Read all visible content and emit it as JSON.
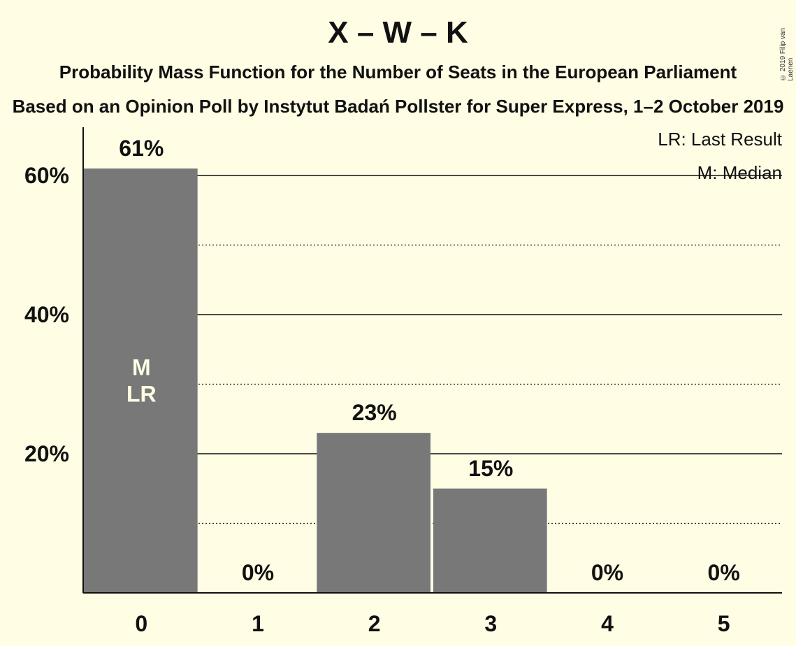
{
  "title": "X – W – K",
  "subtitle1": "Probability Mass Function for the Number of Seats in the European Parliament",
  "subtitle2": "Based on an Opinion Poll by Instytut Badań Pollster for Super Express, 1–2 October 2019",
  "copyright": "© 2019 Filip van Laenen",
  "legend": {
    "last_result": "LR: Last Result",
    "median": "M: Median"
  },
  "colors": {
    "background": "#fffde4",
    "bar": "#787878",
    "text": "#111111"
  },
  "chart_data": {
    "type": "bar",
    "title": "X – W – K",
    "xlabel": "",
    "ylabel": "",
    "categories": [
      "0",
      "1",
      "2",
      "3",
      "4",
      "5"
    ],
    "values": [
      61,
      0,
      23,
      15,
      0,
      0
    ],
    "value_labels": [
      "61%",
      "0%",
      "23%",
      "15%",
      "0%",
      "0%"
    ],
    "ylim": [
      0,
      66
    ],
    "y_ticks": [
      20,
      40,
      60
    ],
    "y_tick_labels": [
      "20%",
      "40%",
      "60%"
    ],
    "minor_gridlines": [
      10,
      30,
      50
    ],
    "bar_markers": [
      {
        "category": "0",
        "lines": [
          "M",
          "LR"
        ]
      }
    ]
  }
}
